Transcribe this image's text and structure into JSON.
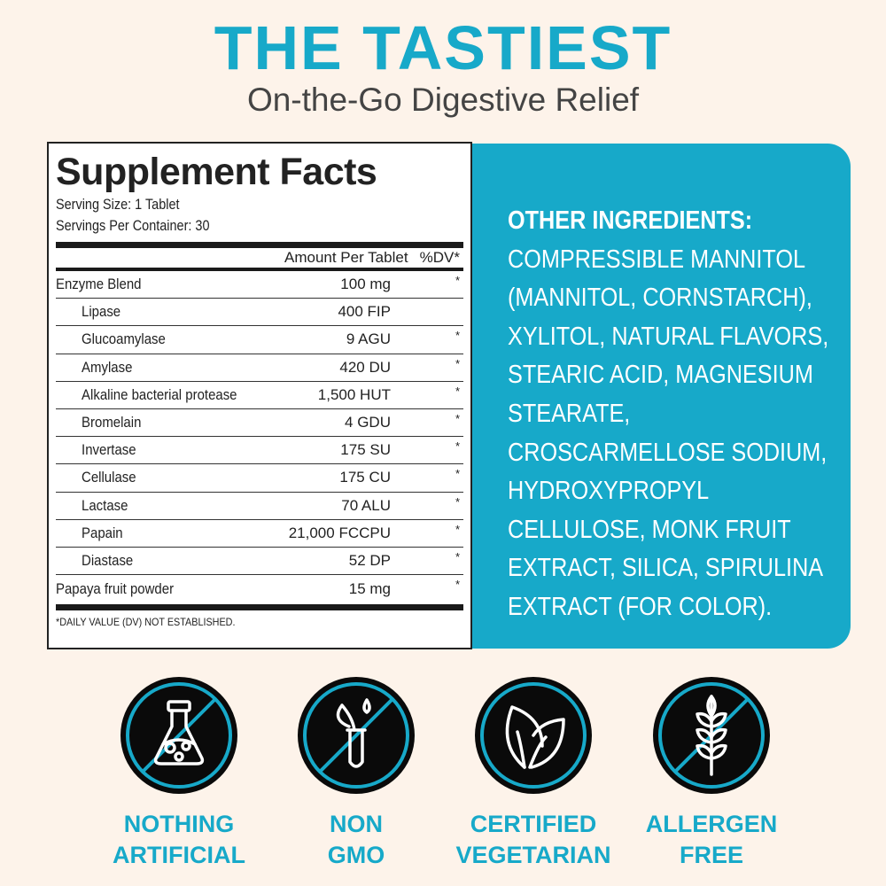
{
  "header": {
    "title": "THE TASTIEST",
    "subtitle": "On-the-Go Digestive Relief"
  },
  "facts": {
    "title": "Supplement Facts",
    "serving_size": "Serving Size: 1 Tablet",
    "servings_per_container": "Servings Per Container: 30",
    "col_amount": "Amount Per Tablet",
    "col_dv": "%DV*",
    "rows": [
      {
        "name": "Enzyme Blend",
        "amount": "100 mg",
        "dv": "*",
        "sub": false
      },
      {
        "name": "Lipase",
        "amount": "400 FIP",
        "dv": "",
        "sub": true
      },
      {
        "name": "Glucoamylase",
        "amount": "9 AGU",
        "dv": "*",
        "sub": true
      },
      {
        "name": "Amylase",
        "amount": "420 DU",
        "dv": "*",
        "sub": true
      },
      {
        "name": "Alkaline bacterial protease",
        "amount": "1,500 HUT",
        "dv": "*",
        "sub": true
      },
      {
        "name": "Bromelain",
        "amount": "4 GDU",
        "dv": "*",
        "sub": true
      },
      {
        "name": "Invertase",
        "amount": "175 SU",
        "dv": "*",
        "sub": true
      },
      {
        "name": "Cellulase",
        "amount": "175 CU",
        "dv": "*",
        "sub": true
      },
      {
        "name": "Lactase",
        "amount": "70 ALU",
        "dv": "*",
        "sub": true
      },
      {
        "name": "Papain",
        "amount": "21,000 FCCPU",
        "dv": "*",
        "sub": true
      },
      {
        "name": "Diastase",
        "amount": "52 DP",
        "dv": "*",
        "sub": true
      },
      {
        "name": "Papaya fruit powder",
        "amount": "15 mg",
        "dv": "*",
        "sub": false
      }
    ],
    "footnote": "*DAILY VALUE (DV) NOT ESTABLISHED."
  },
  "other": {
    "heading": "OTHER INGREDIENTS:",
    "text": "COMPRESSIBLE MANNITOL (MANNITOL, CORNSTARCH), XYLITOL, NATURAL FLAVORS, STEARIC ACID, MAGNESIUM STEARATE, CROSCARMELLOSE SODIUM, HYDROXYPROPYL CELLULOSE, MONK FRUIT EXTRACT, SILICA, SPIRULINA EXTRACT (FOR COLOR)."
  },
  "badges": [
    {
      "icon": "flask-icon",
      "line1": "NOTHING",
      "line2": "ARTIFICIAL",
      "slash": true
    },
    {
      "icon": "test-tube-plant-icon",
      "line1": "NON",
      "line2": "GMO",
      "slash": true
    },
    {
      "icon": "leaf-icon",
      "line1": "CERTIFIED",
      "line2": "VEGETARIAN",
      "slash": false
    },
    {
      "icon": "wheat-icon",
      "line1": "ALLERGEN",
      "line2": "FREE",
      "slash": true
    }
  ],
  "colors": {
    "accent": "#17a9c9",
    "background": "#fdf3ea",
    "text": "#444444"
  }
}
